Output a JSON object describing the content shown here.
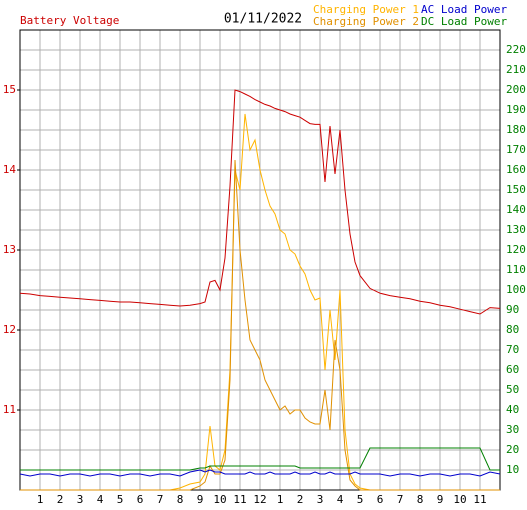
{
  "chart_data": {
    "type": "line",
    "title": "01/11/2022",
    "x": [
      0,
      0.5,
      1,
      1.5,
      2,
      2.5,
      3,
      3.5,
      4,
      4.5,
      5,
      5.5,
      6,
      6.5,
      7,
      7.5,
      8,
      8.5,
      9,
      9.25,
      9.5,
      9.75,
      10,
      10.25,
      10.5,
      10.75,
      11,
      11.25,
      11.5,
      11.75,
      12,
      12.25,
      12.5,
      12.75,
      13,
      13.25,
      13.5,
      13.75,
      14,
      14.25,
      14.5,
      14.75,
      15,
      15.25,
      15.5,
      15.75,
      16,
      16.25,
      16.5,
      16.75,
      17,
      17.5,
      18,
      18.5,
      19,
      19.5,
      20,
      20.5,
      21,
      21.5,
      22,
      22.5,
      23,
      23.5,
      24
    ],
    "series": [
      {
        "name": "Battery Voltage",
        "color": "#cc0000",
        "axis": "y",
        "values": [
          12.46,
          12.45,
          12.43,
          12.42,
          12.41,
          12.4,
          12.39,
          12.38,
          12.37,
          12.36,
          12.35,
          12.35,
          12.34,
          12.33,
          12.32,
          12.31,
          12.3,
          12.31,
          12.33,
          12.35,
          12.6,
          12.62,
          12.5,
          12.9,
          13.8,
          15.0,
          14.98,
          14.95,
          14.92,
          14.88,
          14.85,
          14.82,
          14.8,
          14.77,
          14.75,
          14.73,
          14.7,
          14.68,
          14.66,
          14.62,
          14.58,
          14.57,
          14.57,
          13.85,
          14.55,
          13.95,
          14.5,
          13.75,
          13.2,
          12.85,
          12.68,
          12.52,
          12.46,
          12.43,
          12.41,
          12.39,
          12.36,
          12.34,
          12.31,
          12.29,
          12.26,
          12.23,
          12.2,
          12.28,
          12.27
        ]
      },
      {
        "name": "Charging Power 1",
        "color": "#ffb400",
        "axis": "y2",
        "values": [
          0,
          0,
          0,
          0,
          0,
          0,
          0,
          0,
          0,
          0,
          0,
          0,
          0,
          0,
          0,
          0,
          1,
          3,
          4,
          8,
          32,
          12,
          10,
          20,
          60,
          160,
          150,
          188,
          170,
          175,
          160,
          150,
          142,
          138,
          130,
          128,
          120,
          118,
          112,
          108,
          100,
          95,
          96,
          60,
          90,
          65,
          100,
          30,
          8,
          3,
          1,
          0,
          0,
          0,
          0,
          0,
          0,
          0,
          0,
          0,
          0,
          0,
          0,
          0,
          0
        ]
      },
      {
        "name": "Charging Power 2",
        "color": "#e09000",
        "axis": "y2",
        "values": [
          0,
          0,
          0,
          0,
          0,
          0,
          0,
          0,
          0,
          0,
          0,
          0,
          0,
          0,
          0,
          0,
          0,
          0,
          2,
          4,
          12,
          8,
          8,
          15,
          55,
          165,
          120,
          95,
          75,
          70,
          65,
          55,
          50,
          45,
          40,
          42,
          38,
          40,
          40,
          36,
          34,
          33,
          33,
          50,
          30,
          75,
          60,
          20,
          5,
          2,
          0,
          0,
          0,
          0,
          0,
          0,
          0,
          0,
          0,
          0,
          0,
          0,
          0,
          0,
          0
        ]
      },
      {
        "name": "AC Load Power",
        "color": "#0000cc",
        "axis": "y2",
        "values": [
          8,
          7,
          8,
          8,
          7,
          8,
          8,
          7,
          8,
          8,
          7,
          8,
          8,
          7,
          8,
          8,
          7,
          9,
          10,
          9,
          10,
          9,
          9,
          8,
          8,
          8,
          8,
          8,
          9,
          8,
          8,
          8,
          9,
          8,
          8,
          8,
          8,
          9,
          8,
          8,
          8,
          9,
          8,
          8,
          9,
          8,
          8,
          8,
          8,
          9,
          8,
          8,
          8,
          7,
          8,
          8,
          7,
          8,
          8,
          7,
          8,
          8,
          7,
          9,
          8
        ]
      },
      {
        "name": "DC Load Power",
        "color": "#008000",
        "axis": "y2",
        "values": [
          10,
          10,
          10,
          10,
          10,
          10,
          10,
          10,
          10,
          10,
          10,
          10,
          10,
          10,
          10,
          10,
          10,
          10,
          11,
          11,
          12,
          12,
          12,
          12,
          12,
          12,
          12,
          12,
          12,
          12,
          12,
          12,
          12,
          12,
          12,
          12,
          12,
          12,
          11,
          11,
          11,
          11,
          11,
          11,
          11,
          11,
          11,
          11,
          11,
          11,
          11,
          21,
          21,
          21,
          21,
          21,
          21,
          21,
          21,
          21,
          21,
          21,
          21,
          10,
          10
        ]
      }
    ],
    "xlim": [
      0,
      24
    ],
    "xticks": [
      1,
      2,
      3,
      4,
      5,
      6,
      7,
      8,
      9,
      10,
      11,
      12,
      {
        "value": 13,
        "label": "1"
      },
      {
        "value": 14,
        "label": "2"
      },
      {
        "value": 15,
        "label": "3"
      },
      {
        "value": 16,
        "label": "4"
      },
      {
        "value": 17,
        "label": "5"
      },
      {
        "value": 18,
        "label": "6"
      },
      {
        "value": 19,
        "label": "7"
      },
      {
        "value": 20,
        "label": "8"
      },
      {
        "value": 21,
        "label": "9"
      },
      {
        "value": 22,
        "label": "10"
      },
      {
        "value": 23,
        "label": "11"
      }
    ],
    "ylim": [
      10,
      15.75
    ],
    "yticks": [
      11,
      12,
      13,
      14,
      15
    ],
    "y2lim": [
      0,
      230
    ],
    "y2ticks": [
      10,
      20,
      30,
      40,
      50,
      60,
      70,
      80,
      90,
      100,
      110,
      120,
      130,
      140,
      150,
      160,
      170,
      180,
      190,
      200,
      210,
      220
    ],
    "grid": true
  }
}
